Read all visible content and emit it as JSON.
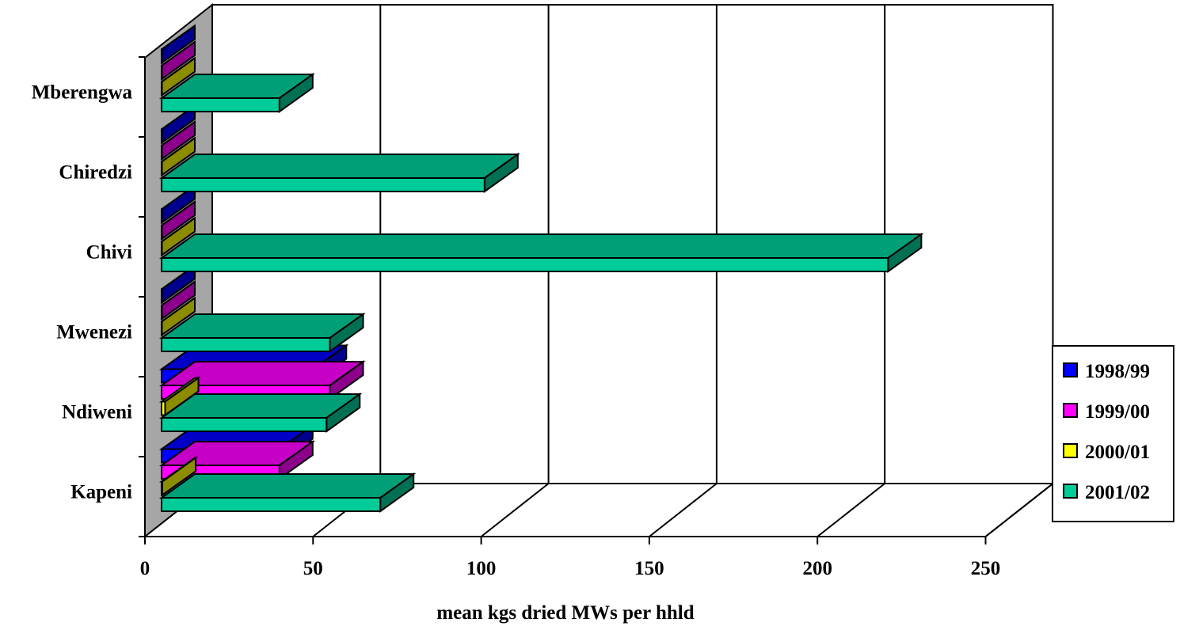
{
  "chart_data": {
    "type": "bar",
    "orientation": "horizontal",
    "style": "3d",
    "categories": [
      "Kapeni",
      "Ndiweni",
      "Mwenezi",
      "Chivi",
      "Chiredzi",
      "Mberengwa"
    ],
    "series": [
      {
        "name": "1998/99",
        "color": "#0000ff",
        "values": [
          40,
          50,
          0,
          0,
          0,
          0
        ]
      },
      {
        "name": "1999/00",
        "color": "#ff00ff",
        "values": [
          40,
          55,
          0,
          0,
          0,
          0
        ]
      },
      {
        "name": "2000/01",
        "color": "#ffff00",
        "values": [
          5,
          6,
          0,
          0,
          0,
          0
        ]
      },
      {
        "name": "2001/02",
        "color": "#00cc99",
        "values": [
          70,
          54,
          55,
          221,
          101,
          40
        ]
      }
    ],
    "xlabel": "mean kgs dried MWs  per hhld",
    "ylabel": "",
    "xlim": [
      0,
      250
    ],
    "xticks": [
      "0",
      "50",
      "100",
      "150",
      "200",
      "250"
    ],
    "grid": true,
    "legend_position": "right"
  }
}
